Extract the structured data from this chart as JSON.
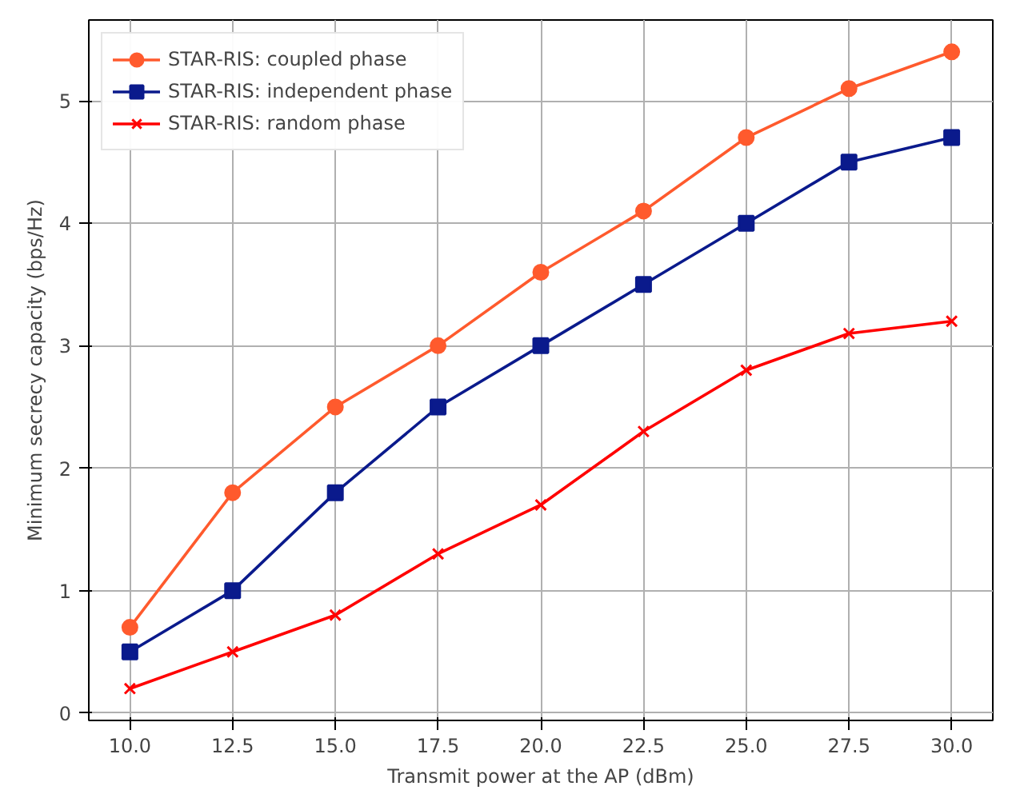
{
  "chart_data": {
    "type": "line",
    "xlabel": "Transmit power at the AP (dBm)",
    "ylabel": "Minimum secrecy capacity (bps/Hz)",
    "x": [
      10.0,
      12.5,
      15.0,
      17.5,
      20.0,
      22.5,
      25.0,
      27.5,
      30.0
    ],
    "series": [
      {
        "name": "STAR-RIS: coupled phase",
        "color": "#ff5a2d",
        "marker": "circle",
        "values": [
          0.7,
          1.8,
          2.5,
          3.0,
          3.6,
          4.1,
          4.7,
          5.1,
          5.4
        ]
      },
      {
        "name": "STAR-RIS: independent phase",
        "color": "#0a1a8c",
        "marker": "square",
        "values": [
          0.5,
          1.0,
          1.8,
          2.5,
          3.0,
          3.5,
          4.0,
          4.5,
          4.7
        ]
      },
      {
        "name": "STAR-RIS: random phase",
        "color": "#ff0000",
        "marker": "x",
        "values": [
          0.2,
          0.5,
          0.8,
          1.3,
          1.7,
          2.3,
          2.8,
          3.1,
          3.2
        ]
      }
    ],
    "xlim": [
      9,
      31
    ],
    "ylim": [
      -0.06,
      5.66
    ],
    "xticks": [
      {
        "value": 10,
        "label": "10.0"
      },
      {
        "value": 12.5,
        "label": "12.5"
      },
      {
        "value": 15,
        "label": "15.0"
      },
      {
        "value": 17.5,
        "label": "17.5"
      },
      {
        "value": 20,
        "label": "20.0"
      },
      {
        "value": 22.5,
        "label": "22.5"
      },
      {
        "value": 25,
        "label": "25.0"
      },
      {
        "value": 27.5,
        "label": "27.5"
      },
      {
        "value": 30,
        "label": "30.0"
      }
    ],
    "yticks": [
      0,
      1,
      2,
      3,
      4,
      5
    ],
    "grid": true,
    "legend": "top left",
    "line_style": "solid"
  }
}
